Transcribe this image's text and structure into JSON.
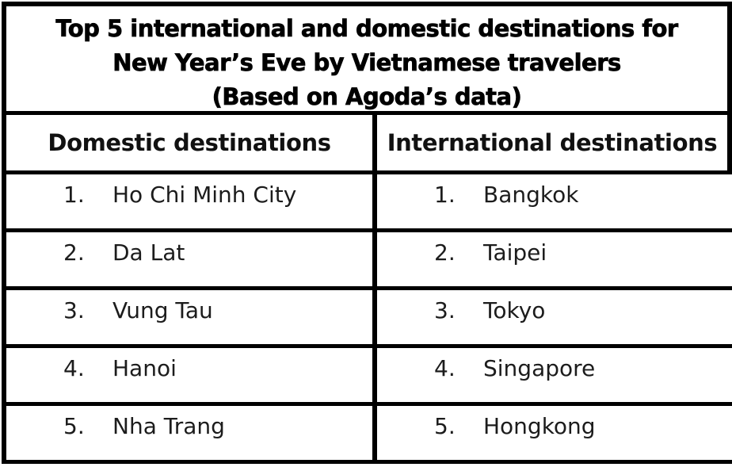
{
  "title": {
    "line1": "Top 5 international and domestic destinations for",
    "line2": "New Year’s Eve by Vietnamese travelers",
    "line3": "(Based on Agoda’s data)"
  },
  "table": {
    "headers": [
      "Domestic destinations",
      "International destinations"
    ],
    "rows": [
      {
        "rank": "1.",
        "domestic": "Ho Chi Minh City",
        "international": "Bangkok"
      },
      {
        "rank": "2.",
        "domestic": "Da Lat",
        "international": "Taipei"
      },
      {
        "rank": "3.",
        "domestic": "Vung Tau",
        "international": "Tokyo"
      },
      {
        "rank": "4.",
        "domestic": "Hanoi",
        "international": "Singapore"
      },
      {
        "rank": "5.",
        "domestic": "Nha Trang",
        "international": "Hongkong"
      }
    ]
  },
  "chart_data": {
    "type": "table",
    "title": "Top 5 international and domestic destinations for New Year’s Eve by Vietnamese travelers (Based on Agoda’s data)",
    "columns": [
      "Domestic destinations",
      "International destinations"
    ],
    "rows": [
      [
        "1. Ho Chi Minh City",
        "1. Bangkok"
      ],
      [
        "2. Da Lat",
        "2. Taipei"
      ],
      [
        "3. Vung Tau",
        "3. Tokyo"
      ],
      [
        "4. Hanoi",
        "4. Singapore"
      ],
      [
        "5. Nha Trang",
        "5. Hongkong"
      ]
    ]
  },
  "colors": {
    "border": "#000000",
    "background": "#ffffff",
    "title_text": "#000000",
    "body_text": "#1c1c1c"
  }
}
